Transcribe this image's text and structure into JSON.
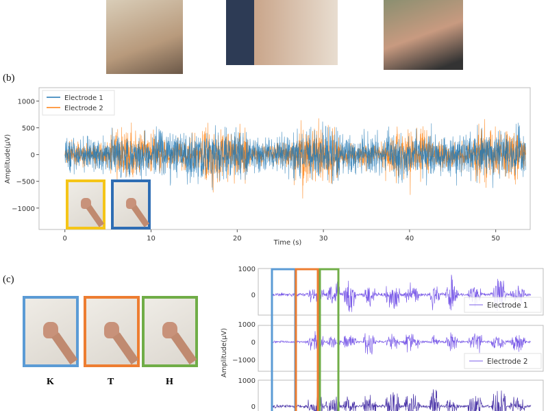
{
  "panel_b_label": "(b)",
  "panel_c_label": "(c)",
  "gestures": [
    {
      "letter": "K",
      "color": "#5b9bd5"
    },
    {
      "letter": "T",
      "color": "#ed7d31"
    },
    {
      "letter": "H",
      "color": "#70ad47"
    }
  ],
  "inset_colors": [
    "#f5c518",
    "#2e6db4"
  ],
  "chart_data": [
    {
      "type": "line",
      "xlabel": "Time (s)",
      "ylabel": "Amplitude(μV)",
      "xlim": [
        -3,
        54
      ],
      "ylim": [
        -1400,
        1250
      ],
      "xticks": [
        0,
        10,
        20,
        30,
        40,
        50
      ],
      "yticks": [
        1000,
        500,
        0,
        -500,
        -1000
      ],
      "series": [
        {
          "name": "Electrode 1",
          "color": "#1f77b4"
        },
        {
          "name": "Electrode 2",
          "color": "#ff7f0e"
        }
      ],
      "legend": "top-left",
      "grid": false
    },
    {
      "type": "line",
      "ylabel": "Amplitude(μV)",
      "subplots": [
        {
          "yticks": [
            1000,
            0
          ],
          "series": [
            {
              "name": "Electrode 1",
              "color": "#7b5ce8"
            }
          ],
          "legend": "bottom-right"
        },
        {
          "yticks": [
            1000,
            0,
            -1000
          ],
          "series": [
            {
              "name": "Electrode 2",
              "color": "#7b5ce8"
            }
          ],
          "legend": "bottom-right"
        },
        {
          "yticks": [
            1000,
            0
          ],
          "series": [
            {
              "color": "#4b35a8"
            }
          ]
        }
      ]
    }
  ]
}
